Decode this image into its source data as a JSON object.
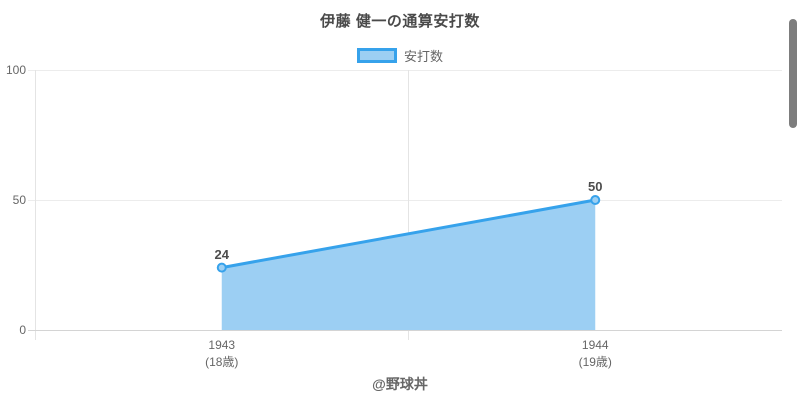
{
  "title": "伊藤 健一の通算安打数",
  "legend": {
    "label": "安打数",
    "position": "top"
  },
  "footer": "@野球丼",
  "chart_data": {
    "type": "area",
    "title": "伊藤 健一の通算安打数",
    "categories": [
      "1943",
      "1944"
    ],
    "category_sublabels": [
      "(18歳)",
      "(19歳)"
    ],
    "series": [
      {
        "name": "安打数",
        "values": [
          24,
          50
        ]
      }
    ],
    "values": [
      24,
      50
    ],
    "value_labels": [
      "24",
      "50"
    ],
    "ylim": [
      0,
      100
    ],
    "yticks": [
      "0",
      "50",
      "100"
    ],
    "grid": true,
    "legend_position": "top",
    "colors": {
      "line": "#36a2eb",
      "fill": "#9ccff3",
      "point_fill": "#9ccff3",
      "grid": "#ececec",
      "axis": "#d4d4d4",
      "tick_text": "#666666",
      "title_text": "#4a4a4a",
      "value_text": "#4d4d4d",
      "scrollbar": "#7d7d7d"
    }
  },
  "scrollbar": {
    "visible": true
  }
}
